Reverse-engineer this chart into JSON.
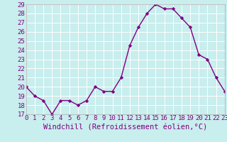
{
  "x": [
    0,
    1,
    2,
    3,
    4,
    5,
    6,
    7,
    8,
    9,
    10,
    11,
    12,
    13,
    14,
    15,
    16,
    17,
    18,
    19,
    20,
    21,
    22,
    23
  ],
  "y": [
    20,
    19,
    18.5,
    17,
    18.5,
    18.5,
    18,
    18.5,
    20,
    19.5,
    19.5,
    21,
    24.5,
    26.5,
    28,
    29,
    28.5,
    28.5,
    27.5,
    26.5,
    23.5,
    23,
    21,
    19.5
  ],
  "line_color": "#800080",
  "marker": "D",
  "marker_size": 2.2,
  "bg_color": "#c8eeee",
  "grid_color": "#ffffff",
  "xlabel": "Windchill (Refroidissement éolien,°C)",
  "ylim": [
    17,
    29
  ],
  "xlim": [
    0,
    23
  ],
  "yticks": [
    17,
    18,
    19,
    20,
    21,
    22,
    23,
    24,
    25,
    26,
    27,
    28,
    29
  ],
  "xticks": [
    0,
    1,
    2,
    3,
    4,
    5,
    6,
    7,
    8,
    9,
    10,
    11,
    12,
    13,
    14,
    15,
    16,
    17,
    18,
    19,
    20,
    21,
    22,
    23
  ],
  "tick_label_fontsize": 6.5,
  "xlabel_fontsize": 7.5,
  "line_width": 1.0,
  "bottom_bar_color": "#800080",
  "bottom_bar_height": 0.13
}
